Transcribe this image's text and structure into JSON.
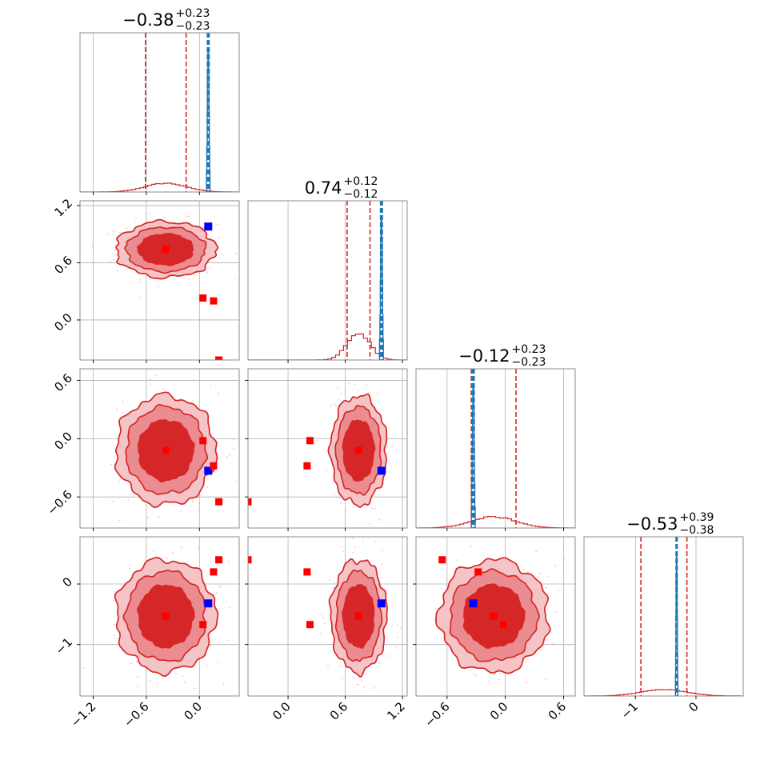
{
  "chart_data": {
    "type": "corner",
    "parameters": 4,
    "colors": {
      "posterior": "#d62728",
      "posterior_fill_outer": "#f4c4c6",
      "posterior_fill_mid": "#ea8c90",
      "posterior_fill_inner": "#d62728",
      "reference": "#1f77b4",
      "truth_markers": "#ff0000",
      "reference_marker": "#0000ff",
      "grid": "#b0b0b0"
    },
    "grid": true,
    "titles": [
      {
        "median": "−0.38",
        "plus": "+0.23",
        "minus": "−0.23"
      },
      {
        "median": "0.74",
        "plus": "+0.12",
        "minus": "−0.12"
      },
      {
        "median": "−0.12",
        "plus": "+0.23",
        "minus": "−0.23"
      },
      {
        "median": "−0.53",
        "plus": "+0.39",
        "minus": "−0.38"
      }
    ],
    "ranges": [
      [
        -1.35,
        0.45
      ],
      [
        -0.42,
        1.25
      ],
      [
        -0.92,
        0.72
      ],
      [
        -1.85,
        0.78
      ]
    ],
    "ticks": [
      {
        "values": [
          -1.2,
          -0.6,
          0.0
        ],
        "labels": [
          "−1.2",
          "−0.6",
          "0.0"
        ]
      },
      {
        "values": [
          0.0,
          0.6,
          1.2
        ],
        "labels": [
          "0.0",
          "0.6",
          "1.2"
        ]
      },
      {
        "values": [
          -0.6,
          0.0,
          0.6
        ],
        "labels": [
          "−0.6",
          "0.0",
          "0.6"
        ]
      },
      {
        "values": [
          -1,
          0
        ],
        "labels": [
          "−1",
          "0"
        ]
      }
    ],
    "posterior_mean": [
      -0.38,
      0.74,
      -0.12,
      -0.53
    ],
    "posterior_sigma": [
      0.23,
      0.12,
      0.23,
      0.38
    ],
    "quantile_lines": [
      [
        -0.61,
        -0.15
      ],
      [
        0.62,
        0.86
      ],
      [
        -0.35,
        0.11
      ],
      [
        -0.91,
        -0.15
      ]
    ],
    "reference_lines": [
      [
        0.09,
        0.1,
        0.11
      ],
      [
        0.97,
        0.98,
        0.99
      ],
      [
        -0.34,
        -0.33,
        -0.32
      ],
      [
        -0.33,
        -0.32,
        -0.31
      ]
    ],
    "reference_point": [
      0.1,
      0.98,
      -0.33,
      -0.32
    ],
    "red_markers": [
      [
        -0.38,
        0.74,
        -0.12,
        -0.53
      ],
      [
        0.04,
        0.23,
        -0.02,
        -0.67
      ],
      [
        0.16,
        0.2,
        -0.28,
        0.2
      ],
      [
        0.22,
        -0.42,
        -0.65,
        0.4
      ]
    ],
    "marginal_peak_ratio": [
      0.055,
      0.17,
      0.07,
      0.04
    ]
  }
}
